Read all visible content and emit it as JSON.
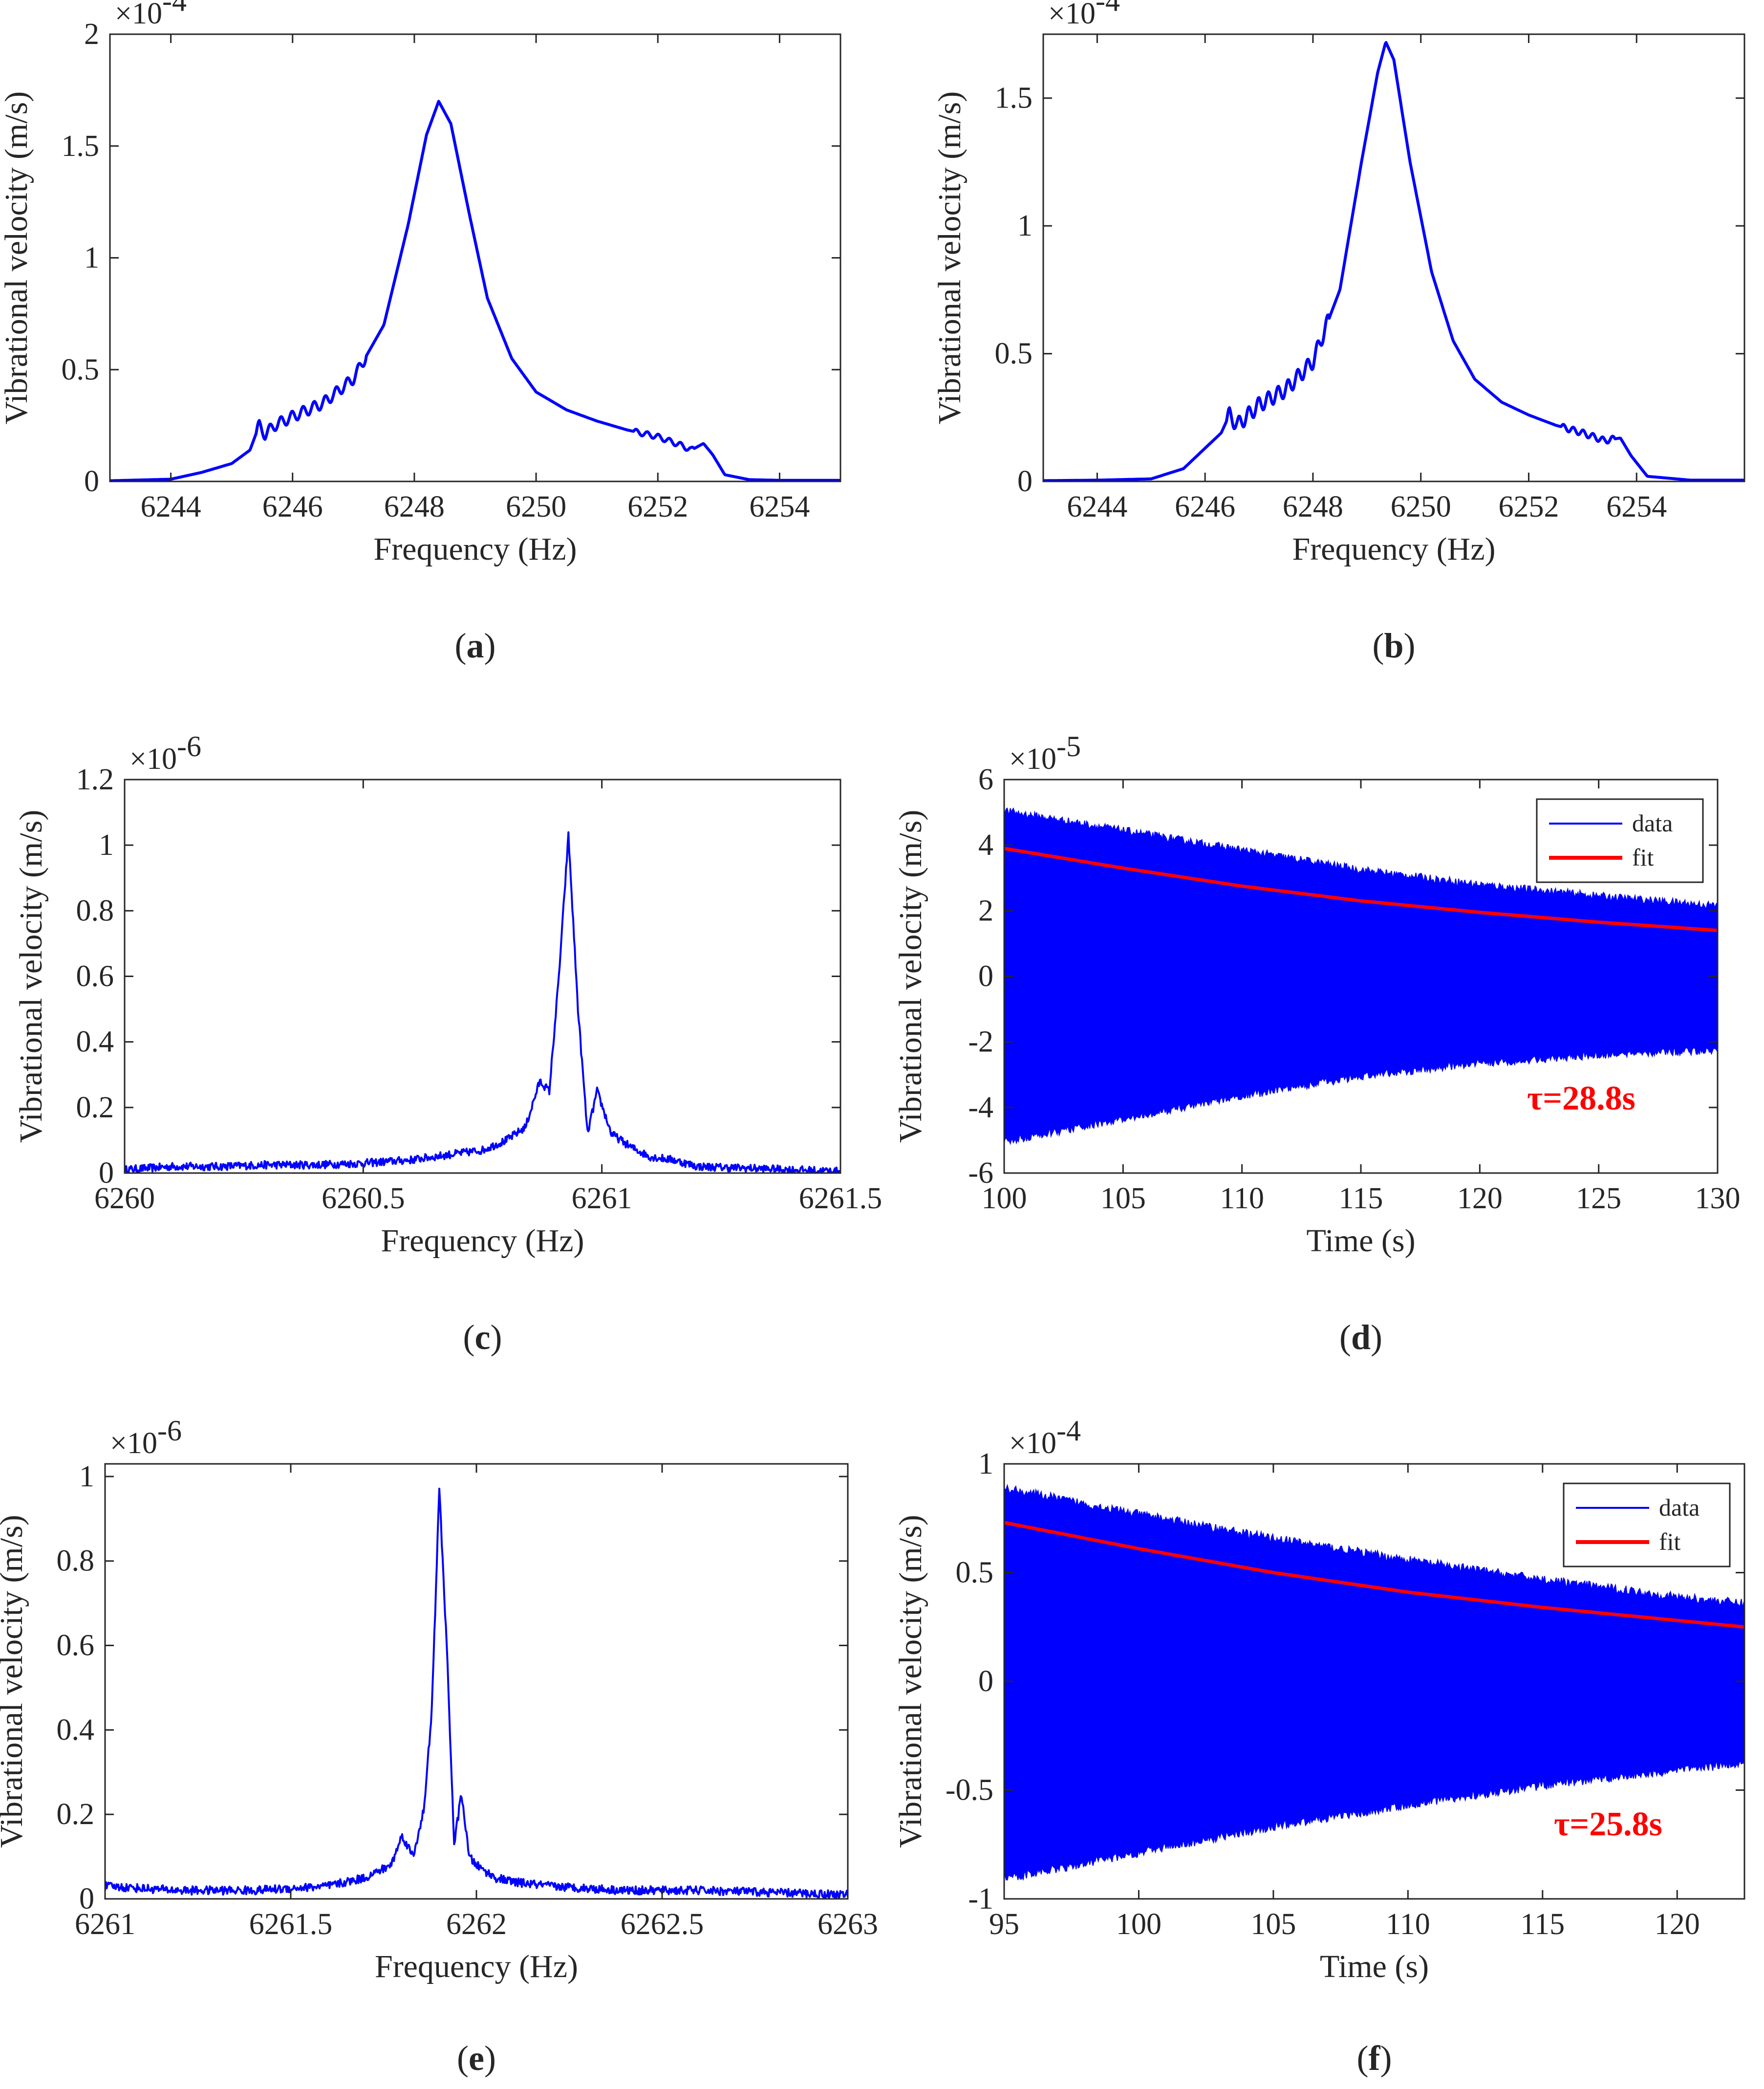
{
  "colors": {
    "data": "#0000ff",
    "fit": "#ff0000",
    "axis": "#262626",
    "tau": "#ff0000"
  },
  "chart_data": [
    {
      "id": "a",
      "type": "line",
      "panel_label": "a",
      "xlabel": "Frequency (Hz)",
      "ylabel": "Vibrational velocity (m/s)",
      "exponent": "-4",
      "xlim": [
        6243,
        6255
      ],
      "ylim": [
        0,
        2
      ],
      "xticks": [
        6244,
        6246,
        6248,
        6250,
        6252,
        6254
      ],
      "yticks": [
        0,
        0.5,
        1,
        1.5,
        2
      ],
      "yticklabels": [
        "0",
        "0.5",
        "1",
        "1.5",
        "2"
      ],
      "series": [
        {
          "x": [
            6243,
            6244,
            6244.5,
            6245,
            6245.3,
            6245.45,
            6245.55,
            6245.7,
            6246,
            6246.5,
            6247,
            6247.5,
            6247.9,
            6248.2,
            6248.4,
            6248.6,
            6248.9,
            6249.2,
            6249.6,
            6250,
            6250.5,
            6251,
            6251.5,
            6252,
            6252.4,
            6252.55,
            6252.75,
            6252.9,
            6253.1,
            6253.5,
            6254,
            6255
          ],
          "y": [
            0.003,
            0.01,
            0.04,
            0.08,
            0.14,
            0.25,
            0.21,
            0.25,
            0.29,
            0.35,
            0.46,
            0.7,
            1.15,
            1.55,
            1.7,
            1.6,
            1.2,
            0.82,
            0.55,
            0.4,
            0.32,
            0.27,
            0.23,
            0.2,
            0.16,
            0.14,
            0.17,
            0.12,
            0.03,
            0.008,
            0.005,
            0.005
          ],
          "oscillation": [
            [
              6245.4,
              6247.2,
              0.025
            ],
            [
              6251.6,
              6252.6,
              0.012
            ]
          ]
        }
      ]
    },
    {
      "id": "b",
      "type": "line",
      "panel_label": "b",
      "xlabel": "Frequency (Hz)",
      "ylabel": "Vibrational velocity (m/s)",
      "exponent": "-4",
      "xlim": [
        6243,
        6256
      ],
      "ylim": [
        0,
        1.75
      ],
      "xticks": [
        6244,
        6246,
        6248,
        6250,
        6252,
        6254
      ],
      "yticks": [
        0,
        0.5,
        1,
        1.5
      ],
      "yticklabels": [
        "0",
        "0.5",
        "1",
        "1.5"
      ],
      "series": [
        {
          "x": [
            6243,
            6244,
            6245,
            6245.6,
            6246,
            6246.3,
            6246.45,
            6246.6,
            6247,
            6247.5,
            6248,
            6248.5,
            6248.9,
            6249.2,
            6249.35,
            6249.5,
            6249.8,
            6250.2,
            6250.6,
            6251,
            6251.5,
            6252,
            6252.5,
            6253,
            6253.4,
            6253.7,
            6253.9,
            6254.2,
            6255,
            6256
          ],
          "y": [
            0.003,
            0.005,
            0.01,
            0.05,
            0.13,
            0.19,
            0.26,
            0.22,
            0.3,
            0.36,
            0.47,
            0.75,
            1.25,
            1.6,
            1.72,
            1.65,
            1.25,
            0.82,
            0.55,
            0.4,
            0.31,
            0.26,
            0.22,
            0.19,
            0.16,
            0.17,
            0.1,
            0.02,
            0.005,
            0.005
          ],
          "oscillation": [
            [
              6246.4,
              6248.3,
              0.03
            ],
            [
              6252.6,
              6253.6,
              0.012
            ]
          ]
        }
      ]
    },
    {
      "id": "c",
      "type": "line",
      "panel_label": "c",
      "xlabel": "Frequency (Hz)",
      "ylabel": "Vibrational velocity (m/s)",
      "exponent": "-6",
      "xlim": [
        6260,
        6261.5
      ],
      "ylim": [
        0,
        1.2
      ],
      "xticks": [
        6260,
        6260.5,
        6261,
        6261.5
      ],
      "xticklabels": [
        "6260",
        "6260.5",
        "6261",
        "6261.5"
      ],
      "yticks": [
        0,
        0.2,
        0.4,
        0.6,
        0.8,
        1,
        1.2
      ],
      "yticklabels": [
        "0",
        "0.2",
        "0.4",
        "0.6",
        "0.8",
        "1",
        "1.2"
      ],
      "series": [
        {
          "x": [
            6260,
            6260.1,
            6260.2,
            6260.3,
            6260.4,
            6260.5,
            6260.6,
            6260.7,
            6260.75,
            6260.8,
            6260.84,
            6260.87,
            6260.89,
            6260.91,
            6260.93,
            6260.95,
            6260.97,
            6260.99,
            6261.02,
            6261.06,
            6261.1,
            6261.15,
            6261.2,
            6261.3,
            6261.4,
            6261.5
          ],
          "y": [
            0.01,
            0.02,
            0.02,
            0.025,
            0.025,
            0.03,
            0.04,
            0.06,
            0.07,
            0.1,
            0.14,
            0.28,
            0.25,
            0.6,
            1.03,
            0.5,
            0.12,
            0.25,
            0.12,
            0.08,
            0.05,
            0.04,
            0.02,
            0.015,
            0.01,
            0.005
          ],
          "noise": 0.012
        }
      ]
    },
    {
      "id": "d",
      "type": "line",
      "panel_label": "d",
      "xlabel": "Time (s)",
      "ylabel": "Vibrational velocity (m/s)",
      "exponent": "-5",
      "xlim": [
        100,
        130
      ],
      "ylim": [
        -6,
        6
      ],
      "xticks": [
        100,
        105,
        110,
        115,
        120,
        125,
        130
      ],
      "yticks": [
        -6,
        -4,
        -2,
        0,
        2,
        4,
        6
      ],
      "yticklabels": [
        "-6",
        "-4",
        "-2",
        "0",
        "2",
        "4",
        "6"
      ],
      "legend": [
        "data",
        "fit"
      ],
      "legend_position": "top-right",
      "tau_label": "τ=28.8s",
      "envelope": {
        "t": [
          100,
          105,
          110,
          115,
          120,
          125,
          130
        ],
        "upper": [
          5.0,
          4.4,
          3.8,
          3.2,
          2.75,
          2.4,
          2.1
        ],
        "lower": [
          -5.0,
          -4.3,
          -3.6,
          -3.0,
          -2.6,
          -2.35,
          -2.2
        ]
      },
      "fit": {
        "t": [
          100,
          105,
          110,
          115,
          120,
          125,
          130
        ],
        "y": [
          3.9,
          3.3,
          2.75,
          2.3,
          1.95,
          1.65,
          1.4
        ]
      }
    },
    {
      "id": "e",
      "type": "line",
      "panel_label": "e",
      "xlabel": "Frequency (Hz)",
      "ylabel": "Vibrational velocity (m/s)",
      "exponent": "-6",
      "xlim": [
        6261,
        6263
      ],
      "ylim": [
        0,
        1.03
      ],
      "xticks": [
        6261,
        6261.5,
        6262,
        6262.5,
        6263
      ],
      "xticklabels": [
        "6261",
        "6261.5",
        "6262",
        "6262.5",
        "6263"
      ],
      "yticks": [
        0,
        0.2,
        0.4,
        0.6,
        0.8,
        1
      ],
      "yticklabels": [
        "0",
        "0.2",
        "0.4",
        "0.6",
        "0.8",
        "1"
      ],
      "series": [
        {
          "x": [
            6261,
            6261.2,
            6261.4,
            6261.6,
            6261.7,
            6261.77,
            6261.8,
            6261.83,
            6261.86,
            6261.88,
            6261.9,
            6261.92,
            6261.94,
            6261.96,
            6261.98,
            6262.0,
            6262.05,
            6262.1,
            6262.2,
            6262.4,
            6262.6,
            6262.8,
            6263
          ],
          "y": [
            0.03,
            0.02,
            0.02,
            0.03,
            0.05,
            0.08,
            0.15,
            0.1,
            0.22,
            0.45,
            0.97,
            0.6,
            0.13,
            0.25,
            0.1,
            0.08,
            0.05,
            0.04,
            0.03,
            0.02,
            0.02,
            0.015,
            0.01
          ],
          "noise": 0.01
        }
      ]
    },
    {
      "id": "f",
      "type": "line",
      "panel_label": "f",
      "xlabel": "Time (s)",
      "ylabel": "Vibrational velocity (m/s)",
      "exponent": "-4",
      "xlim": [
        95,
        122.5
      ],
      "ylim": [
        -1,
        1
      ],
      "xticks": [
        95,
        100,
        105,
        110,
        115,
        120
      ],
      "yticks": [
        -1,
        -0.5,
        0,
        0.5,
        1
      ],
      "yticklabels": [
        "-1",
        "-0.5",
        "0",
        "0.5",
        "1"
      ],
      "legend": [
        "data",
        "fit"
      ],
      "legend_position": "top-right",
      "tau_label": "τ=25.8s",
      "envelope": {
        "t": [
          95,
          100,
          105,
          110,
          115,
          120,
          122.5
        ],
        "upper": [
          0.88,
          0.76,
          0.65,
          0.55,
          0.46,
          0.38,
          0.35
        ],
        "lower": [
          -0.9,
          -0.78,
          -0.66,
          -0.56,
          -0.47,
          -0.4,
          -0.37
        ]
      },
      "fit": {
        "t": [
          95,
          100,
          105,
          110,
          115,
          120,
          122.5
        ],
        "y": [
          0.73,
          0.61,
          0.5,
          0.41,
          0.34,
          0.28,
          0.25
        ]
      }
    }
  ]
}
